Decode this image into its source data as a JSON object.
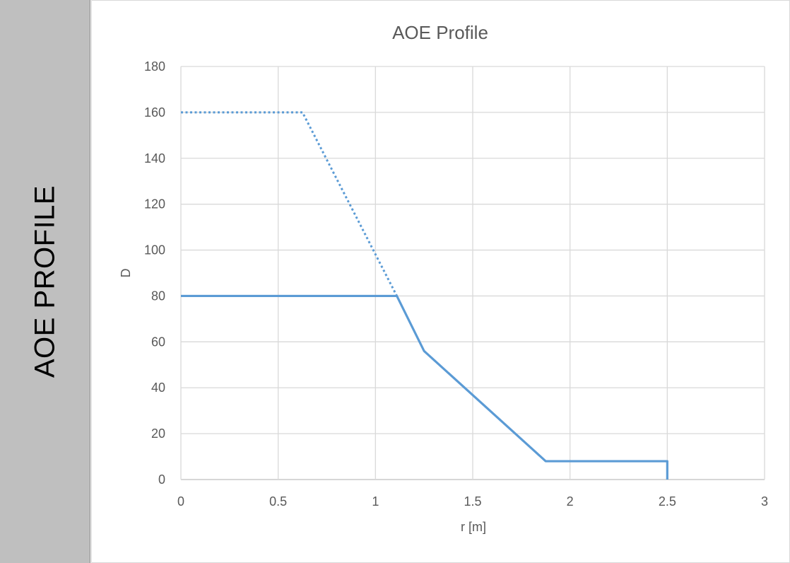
{
  "side_panel": {
    "label": "AOE PROFILE",
    "background": "#bfbfbf"
  },
  "chart_data": {
    "type": "line",
    "title": "AOE Profile",
    "xlabel": "r [m]",
    "ylabel": "D",
    "xlim": [
      0,
      3
    ],
    "ylim": [
      0,
      180
    ],
    "xticks": [
      0,
      0.5,
      1,
      1.5,
      2,
      2.5,
      3
    ],
    "xtick_labels": [
      "0",
      "0.5",
      "1",
      "1.5",
      "2",
      "2.5",
      "3"
    ],
    "yticks": [
      0,
      20,
      40,
      60,
      80,
      100,
      120,
      140,
      160,
      180
    ],
    "ytick_labels": [
      "0",
      "20",
      "40",
      "60",
      "80",
      "100",
      "120",
      "140",
      "160",
      "180"
    ],
    "grid": true,
    "legend": "none",
    "series": [
      {
        "style": "dotted",
        "color": "#5b9bd5",
        "x": [
          0,
          0.625,
          1.11
        ],
        "y": [
          160,
          160,
          80
        ]
      },
      {
        "style": "solid",
        "color": "#5b9bd5",
        "x": [
          0,
          1.11,
          1.25,
          1.875,
          2.5,
          2.5
        ],
        "y": [
          80,
          80,
          56,
          8,
          8,
          0
        ]
      }
    ]
  }
}
